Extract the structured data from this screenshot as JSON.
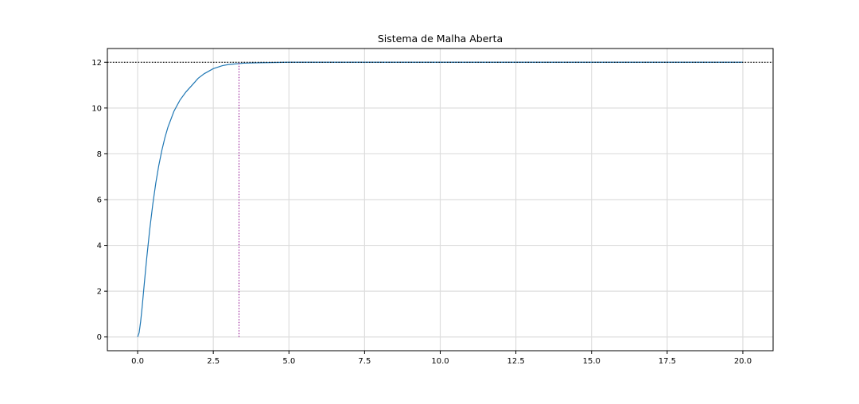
{
  "chart_data": {
    "type": "line",
    "title": "Sistema de Malha Aberta",
    "xlabel": "",
    "ylabel": "",
    "xlim": [
      -1.0,
      21.0
    ],
    "ylim": [
      -0.6,
      12.6
    ],
    "xticks": [
      0.0,
      2.5,
      5.0,
      7.5,
      10.0,
      12.5,
      15.0,
      17.5,
      20.0
    ],
    "xtick_labels": [
      "0.0",
      "2.5",
      "5.0",
      "7.5",
      "10.0",
      "12.5",
      "15.0",
      "17.5",
      "20.0"
    ],
    "yticks": [
      0,
      2,
      4,
      6,
      8,
      10,
      12
    ],
    "ytick_labels": [
      "0",
      "2",
      "4",
      "6",
      "8",
      "10",
      "12"
    ],
    "grid": true,
    "series": [
      {
        "kind": "line",
        "color": "#1f77b4",
        "x": [
          0,
          0.05,
          0.1,
          0.15,
          0.2,
          0.25,
          0.3,
          0.4,
          0.5,
          0.6,
          0.7,
          0.8,
          0.9,
          1.0,
          1.2,
          1.4,
          1.6,
          1.8,
          2.0,
          2.2,
          2.5,
          2.8,
          3.0,
          3.5,
          4.0,
          5.0,
          7.5,
          10.0,
          12.5,
          15.0,
          17.5,
          20.0
        ],
        "y": [
          0.0,
          0.19,
          0.68,
          1.32,
          2.04,
          2.75,
          3.44,
          4.7,
          5.79,
          6.72,
          7.5,
          8.15,
          8.7,
          9.16,
          9.86,
          10.35,
          10.71,
          11.0,
          11.3,
          11.5,
          11.72,
          11.85,
          11.9,
          11.96,
          11.98,
          12.0,
          12.0,
          12.0,
          12.0,
          12.0,
          12.0,
          12.0
        ]
      },
      {
        "kind": "hline",
        "y": 12.0,
        "color": "#000000",
        "linestyle": "dotted"
      },
      {
        "kind": "vline",
        "x": 3.35,
        "ymin": 0.0,
        "ymax": 12.0,
        "color": "#8b008b",
        "linestyle": "dotted"
      }
    ]
  }
}
